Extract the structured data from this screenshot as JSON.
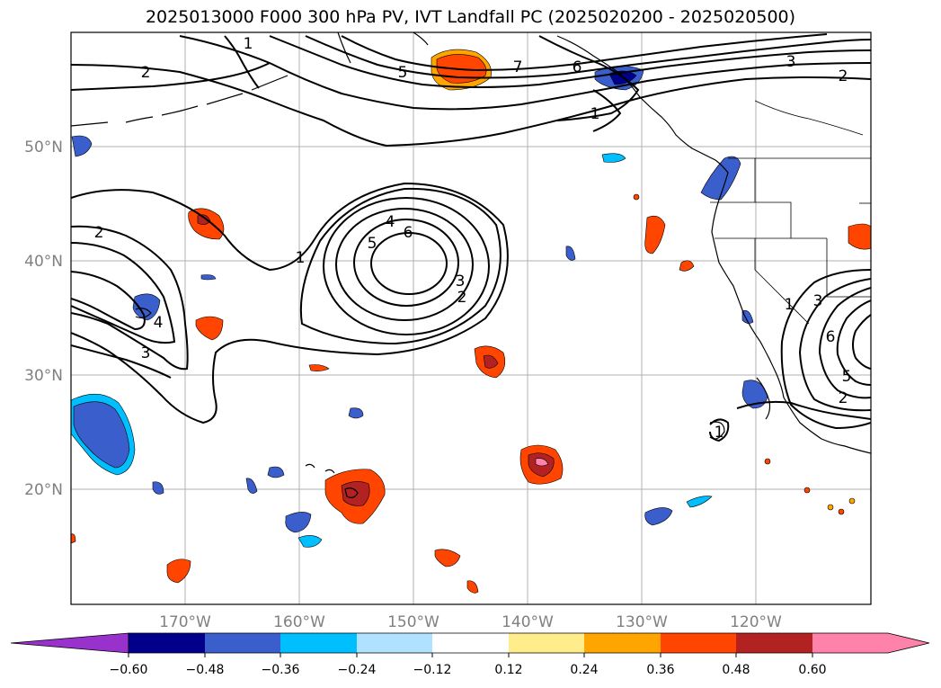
{
  "map": {
    "title": "2025013000 F000 300 hPa PV, IVT Landfall PC (2025020200 - 2025020500)",
    "lat_labels": [
      "50°N",
      "40°N",
      "30°N",
      "20°N"
    ],
    "lon_labels": [
      "170°W",
      "160°W",
      "150°W",
      "140°W",
      "130°W",
      "120°W"
    ],
    "contour_labels": [
      "1",
      "2",
      "5",
      "7",
      "6",
      "3",
      "2",
      "1",
      "2",
      "1",
      "4",
      "5",
      "6",
      "3",
      "2",
      "4",
      "3",
      "1",
      "3",
      "6",
      "5",
      "2",
      "1"
    ],
    "colors": {
      "contour": "#000000",
      "grid": "#b0b0b0",
      "neg_060": "#9932cc",
      "neg_048": "#00008b",
      "neg_036": "#3a5fcd",
      "neg_024": "#00bfff",
      "neg_012": "#b0e2ff",
      "neutral": "#ffffff",
      "pos_012": "#ffec8b",
      "pos_024": "#ffa500",
      "pos_036": "#ff4500",
      "pos_048": "#b22222",
      "pos_060": "#ff82ab"
    }
  },
  "colorbar": {
    "tick_labels": [
      "−0.60",
      "−0.48",
      "−0.36",
      "−0.24",
      "−0.12",
      "0.12",
      "0.24",
      "0.36",
      "0.48",
      "0.60"
    ],
    "colors": [
      "#9932cc",
      "#00008b",
      "#3a5fcd",
      "#00bfff",
      "#b0e2ff",
      "#ffffff",
      "#ffec8b",
      "#ffa500",
      "#ff4500",
      "#b22222",
      "#ff82ab"
    ]
  }
}
